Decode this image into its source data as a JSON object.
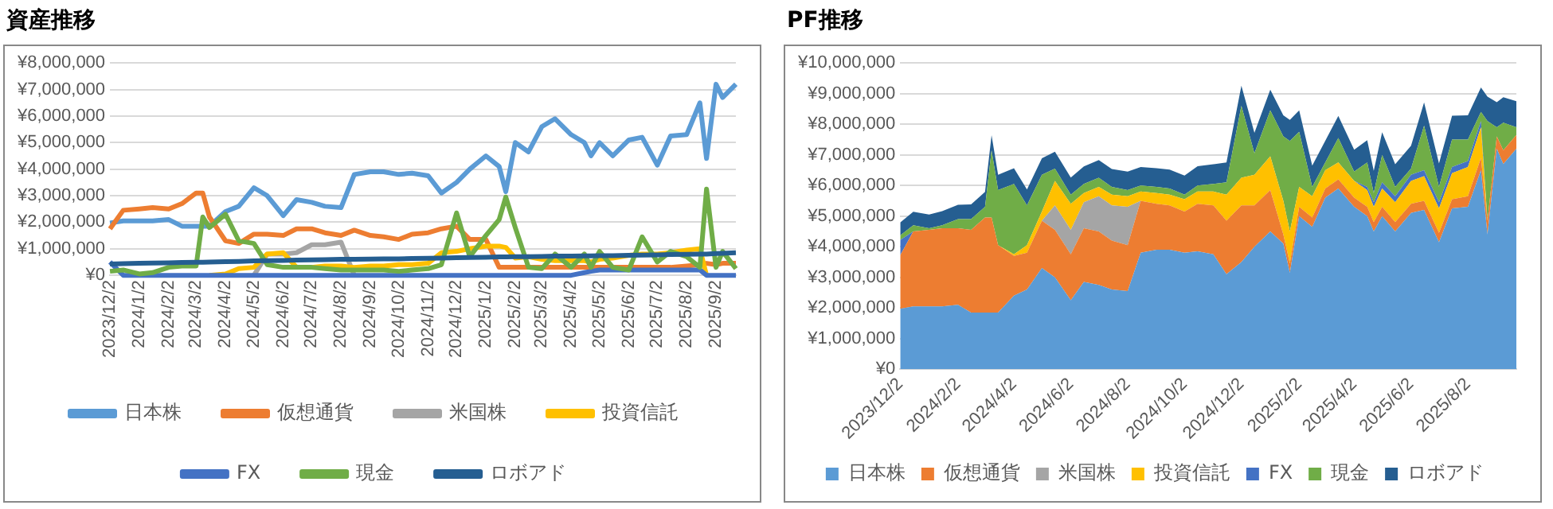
{
  "chart_data": [
    {
      "type": "line",
      "title": "資産推移",
      "grid": "y",
      "legend": "bottom",
      "marker": "none",
      "line_style": "solid",
      "x": [
        "2023-12-02",
        "2023-12-16",
        "2024-01-02",
        "2024-01-16",
        "2024-02-02",
        "2024-02-16",
        "2024-03-02",
        "2024-03-09",
        "2024-03-16",
        "2024-04-02",
        "2024-04-16",
        "2024-05-02",
        "2024-05-16",
        "2024-06-02",
        "2024-06-16",
        "2024-07-02",
        "2024-07-16",
        "2024-08-02",
        "2024-08-16",
        "2024-09-02",
        "2024-09-16",
        "2024-10-02",
        "2024-10-16",
        "2024-11-02",
        "2024-11-16",
        "2024-12-02",
        "2024-12-16",
        "2025-01-02",
        "2025-01-16",
        "2025-01-23",
        "2025-02-02",
        "2025-02-16",
        "2025-03-02",
        "2025-03-16",
        "2025-04-02",
        "2025-04-16",
        "2025-04-23",
        "2025-05-02",
        "2025-05-16",
        "2025-06-02",
        "2025-06-16",
        "2025-07-02",
        "2025-07-16",
        "2025-08-02",
        "2025-08-16",
        "2025-08-23",
        "2025-09-02",
        "2025-09-09",
        "2025-09-23"
      ],
      "xlim": [
        "2023-12-02",
        "2025-09-23"
      ],
      "xticks": [
        {
          "value": "2023-12-02",
          "label": "2023/12/2"
        },
        {
          "value": "2024-01-02",
          "label": "2024/1/2"
        },
        {
          "value": "2024-02-02",
          "label": "2024/2/2"
        },
        {
          "value": "2024-03-02",
          "label": "2024/3/2"
        },
        {
          "value": "2024-04-02",
          "label": "2024/4/2"
        },
        {
          "value": "2024-05-02",
          "label": "2024/5/2"
        },
        {
          "value": "2024-06-02",
          "label": "2024/6/2"
        },
        {
          "value": "2024-07-02",
          "label": "2024/7/2"
        },
        {
          "value": "2024-08-02",
          "label": "2024/8/2"
        },
        {
          "value": "2024-09-02",
          "label": "2024/9/2"
        },
        {
          "value": "2024-10-02",
          "label": "2024/10/2"
        },
        {
          "value": "2024-11-02",
          "label": "2024/11/2"
        },
        {
          "value": "2024-12-02",
          "label": "2024/12/2"
        },
        {
          "value": "2025-01-02",
          "label": "2025/1/2"
        },
        {
          "value": "2025-02-02",
          "label": "2025/2/2"
        },
        {
          "value": "2025-03-02",
          "label": "2025/3/2"
        },
        {
          "value": "2025-04-02",
          "label": "2025/4/2"
        },
        {
          "value": "2025-05-02",
          "label": "2025/5/2"
        },
        {
          "value": "2025-06-02",
          "label": "2025/6/2"
        },
        {
          "value": "2025-07-02",
          "label": "2025/7/2"
        },
        {
          "value": "2025-08-02",
          "label": "2025/8/2"
        },
        {
          "value": "2025-09-02",
          "label": "2025/9/2"
        }
      ],
      "ylim": [
        0,
        8000000
      ],
      "yticks": [
        {
          "value": 0,
          "label": "¥0"
        },
        {
          "value": 1000000,
          "label": "¥1,000,000"
        },
        {
          "value": 2000000,
          "label": "¥2,000,000"
        },
        {
          "value": 3000000,
          "label": "¥3,000,000"
        },
        {
          "value": 4000000,
          "label": "¥4,000,000"
        },
        {
          "value": 5000000,
          "label": "¥5,000,000"
        },
        {
          "value": 6000000,
          "label": "¥6,000,000"
        },
        {
          "value": 7000000,
          "label": "¥7,000,000"
        },
        {
          "value": 8000000,
          "label": "¥8,000,000"
        }
      ],
      "series": [
        {
          "name": "日本株",
          "color": "#5b9bd5",
          "values": [
            1970000,
            2050000,
            2050000,
            2050000,
            2100000,
            1850000,
            1850000,
            1850000,
            1850000,
            2400000,
            2600000,
            3300000,
            3000000,
            2250000,
            2850000,
            2750000,
            2600000,
            2550000,
            3800000,
            3900000,
            3900000,
            3800000,
            3850000,
            3750000,
            3100000,
            3500000,
            4000000,
            4500000,
            4100000,
            3150000,
            5000000,
            4650000,
            5600000,
            5900000,
            5300000,
            5000000,
            4500000,
            5000000,
            4500000,
            5100000,
            5200000,
            4150000,
            5250000,
            5300000,
            6500000,
            4400000,
            7200000,
            6700000,
            7200000
          ]
        },
        {
          "name": "仮想通貨",
          "color": "#ed7d31",
          "values": [
            1750000,
            2450000,
            2500000,
            2550000,
            2500000,
            2700000,
            3100000,
            3100000,
            2200000,
            1300000,
            1200000,
            1550000,
            1550000,
            1500000,
            1750000,
            1750000,
            1600000,
            1500000,
            1700000,
            1500000,
            1450000,
            1350000,
            1550000,
            1600000,
            1750000,
            1850000,
            1350000,
            1350000,
            300000,
            300000,
            300000,
            300000,
            300000,
            300000,
            300000,
            300000,
            300000,
            300000,
            300000,
            300000,
            300000,
            300000,
            300000,
            350000,
            400000,
            450000,
            400000,
            450000,
            450000
          ]
        },
        {
          "name": "米国株",
          "color": "#a5a5a5",
          "values": [
            null,
            null,
            null,
            null,
            null,
            null,
            null,
            null,
            null,
            null,
            null,
            0,
            800000,
            800000,
            850000,
            1150000,
            1150000,
            1250000,
            0,
            null,
            null,
            null,
            null,
            null,
            null,
            null,
            null,
            null,
            null,
            null,
            null,
            null,
            null,
            null,
            null,
            null,
            null,
            null,
            null,
            null,
            null,
            null,
            null,
            null,
            null,
            null,
            null,
            null,
            null
          ]
        },
        {
          "name": "投資信託",
          "color": "#ffc000",
          "values": [
            null,
            null,
            null,
            null,
            null,
            null,
            null,
            null,
            0,
            50000,
            250000,
            300000,
            800000,
            850000,
            300000,
            300000,
            350000,
            350000,
            300000,
            350000,
            350000,
            400000,
            400000,
            450000,
            850000,
            900000,
            1000000,
            1100000,
            1100000,
            1050000,
            650000,
            700000,
            600000,
            550000,
            550000,
            550000,
            500000,
            600000,
            650000,
            750000,
            800000,
            800000,
            850000,
            950000,
            1000000,
            0,
            null,
            null,
            null
          ]
        },
        {
          "name": "FX",
          "color": "#4472c4",
          "values": [
            500000,
            0,
            0,
            0,
            0,
            0,
            0,
            0,
            0,
            0,
            0,
            0,
            0,
            0,
            0,
            0,
            0,
            0,
            0,
            0,
            0,
            0,
            0,
            0,
            0,
            0,
            0,
            0,
            0,
            0,
            0,
            0,
            0,
            0,
            0,
            100000,
            150000,
            200000,
            200000,
            200000,
            200000,
            200000,
            200000,
            200000,
            200000,
            0,
            0,
            0,
            0
          ]
        },
        {
          "name": "現金",
          "color": "#70ad47",
          "values": [
            150000,
            200000,
            50000,
            100000,
            300000,
            350000,
            350000,
            2200000,
            1800000,
            2300000,
            1300000,
            1200000,
            400000,
            300000,
            300000,
            300000,
            250000,
            200000,
            200000,
            200000,
            200000,
            150000,
            200000,
            250000,
            400000,
            2350000,
            700000,
            1500000,
            2100000,
            2950000,
            1800000,
            300000,
            250000,
            800000,
            300000,
            800000,
            300000,
            900000,
            300000,
            200000,
            1450000,
            500000,
            900000,
            700000,
            300000,
            3250000,
            300000,
            900000,
            250000
          ]
        },
        {
          "name": "ロボアド",
          "color": "#255e91",
          "values": [
            420000,
            440000,
            450000,
            460000,
            470000,
            480000,
            490000,
            490000,
            500000,
            510000,
            520000,
            540000,
            550000,
            560000,
            570000,
            580000,
            590000,
            600000,
            600000,
            610000,
            620000,
            620000,
            630000,
            640000,
            650000,
            660000,
            670000,
            680000,
            690000,
            690000,
            700000,
            700000,
            710000,
            720000,
            720000,
            730000,
            730000,
            740000,
            740000,
            750000,
            760000,
            770000,
            780000,
            790000,
            800000,
            800000,
            820000,
            830000,
            850000
          ]
        }
      ]
    },
    {
      "type": "area",
      "stacked": true,
      "title": "PF推移",
      "grid": "y",
      "legend": "bottom",
      "x": [
        "2023-12-02",
        "2023-12-16",
        "2024-01-02",
        "2024-01-16",
        "2024-02-02",
        "2024-02-16",
        "2024-03-02",
        "2024-03-09",
        "2024-03-16",
        "2024-04-02",
        "2024-04-16",
        "2024-05-02",
        "2024-05-16",
        "2024-06-02",
        "2024-06-16",
        "2024-07-02",
        "2024-07-16",
        "2024-08-02",
        "2024-08-16",
        "2024-09-02",
        "2024-09-16",
        "2024-10-02",
        "2024-10-16",
        "2024-11-02",
        "2024-11-16",
        "2024-12-02",
        "2024-12-16",
        "2025-01-02",
        "2025-01-16",
        "2025-01-23",
        "2025-02-02",
        "2025-02-16",
        "2025-03-02",
        "2025-03-16",
        "2025-04-02",
        "2025-04-16",
        "2025-04-23",
        "2025-05-02",
        "2025-05-16",
        "2025-06-02",
        "2025-06-16",
        "2025-07-02",
        "2025-07-16",
        "2025-08-02",
        "2025-08-16",
        "2025-08-23",
        "2025-09-02",
        "2025-09-09",
        "2025-09-23"
      ],
      "xlim": [
        "2023-12-02",
        "2025-09-23"
      ],
      "xticks": [
        {
          "value": "2023-12-02",
          "label": "2023/12/2"
        },
        {
          "value": "2024-02-02",
          "label": "2024/2/2"
        },
        {
          "value": "2024-04-02",
          "label": "2024/4/2"
        },
        {
          "value": "2024-06-02",
          "label": "2024/6/2"
        },
        {
          "value": "2024-08-02",
          "label": "2024/8/2"
        },
        {
          "value": "2024-10-02",
          "label": "2024/10/2"
        },
        {
          "value": "2024-12-02",
          "label": "2024/12/2"
        },
        {
          "value": "2025-02-02",
          "label": "2025/2/2"
        },
        {
          "value": "2025-04-02",
          "label": "2025/4/2"
        },
        {
          "value": "2025-06-02",
          "label": "2025/6/2"
        },
        {
          "value": "2025-08-02",
          "label": "2025/8/2"
        }
      ],
      "ylim": [
        0,
        10000000
      ],
      "yticks": [
        {
          "value": 0,
          "label": "¥0"
        },
        {
          "value": 1000000,
          "label": "¥1,000,000"
        },
        {
          "value": 2000000,
          "label": "¥2,000,000"
        },
        {
          "value": 3000000,
          "label": "¥3,000,000"
        },
        {
          "value": 4000000,
          "label": "¥4,000,000"
        },
        {
          "value": 5000000,
          "label": "¥5,000,000"
        },
        {
          "value": 6000000,
          "label": "¥6,000,000"
        },
        {
          "value": 7000000,
          "label": "¥7,000,000"
        },
        {
          "value": 8000000,
          "label": "¥8,000,000"
        },
        {
          "value": 9000000,
          "label": "¥9,000,000"
        },
        {
          "value": 10000000,
          "label": "¥10,000,000"
        }
      ],
      "series": [
        {
          "name": "日本株",
          "color": "#5b9bd5",
          "values": [
            1970000,
            2050000,
            2050000,
            2050000,
            2100000,
            1850000,
            1850000,
            1850000,
            1850000,
            2400000,
            2600000,
            3300000,
            3000000,
            2250000,
            2850000,
            2750000,
            2600000,
            2550000,
            3800000,
            3900000,
            3900000,
            3800000,
            3850000,
            3750000,
            3100000,
            3500000,
            4000000,
            4500000,
            4100000,
            3150000,
            5000000,
            4650000,
            5600000,
            5900000,
            5300000,
            5000000,
            4500000,
            5000000,
            4500000,
            5100000,
            5200000,
            4150000,
            5250000,
            5300000,
            6500000,
            4400000,
            7200000,
            6700000,
            7200000
          ]
        },
        {
          "name": "仮想通貨",
          "color": "#ed7d31",
          "values": [
            1750000,
            2450000,
            2500000,
            2550000,
            2500000,
            2700000,
            3100000,
            3100000,
            2200000,
            1300000,
            1200000,
            1550000,
            1550000,
            1500000,
            1750000,
            1750000,
            1600000,
            1500000,
            1700000,
            1500000,
            1450000,
            1350000,
            1550000,
            1600000,
            1750000,
            1850000,
            1350000,
            1350000,
            300000,
            300000,
            300000,
            300000,
            300000,
            300000,
            300000,
            300000,
            300000,
            300000,
            300000,
            300000,
            300000,
            300000,
            300000,
            350000,
            400000,
            450000,
            400000,
            450000,
            450000
          ]
        },
        {
          "name": "米国株",
          "color": "#a5a5a5",
          "values": [
            0,
            0,
            0,
            0,
            0,
            0,
            0,
            0,
            0,
            0,
            0,
            0,
            800000,
            800000,
            850000,
            1150000,
            1150000,
            1250000,
            0,
            0,
            0,
            0,
            0,
            0,
            0,
            0,
            0,
            0,
            0,
            0,
            0,
            0,
            0,
            0,
            0,
            0,
            0,
            0,
            0,
            0,
            0,
            0,
            0,
            0,
            0,
            0,
            0,
            0,
            0
          ]
        },
        {
          "name": "投資信託",
          "color": "#ffc000",
          "values": [
            0,
            0,
            0,
            0,
            0,
            0,
            0,
            0,
            0,
            50000,
            250000,
            300000,
            800000,
            850000,
            300000,
            300000,
            350000,
            350000,
            300000,
            350000,
            350000,
            400000,
            400000,
            450000,
            850000,
            900000,
            1000000,
            1100000,
            1100000,
            1050000,
            650000,
            700000,
            600000,
            550000,
            550000,
            550000,
            500000,
            600000,
            650000,
            750000,
            800000,
            800000,
            850000,
            950000,
            1000000,
            0,
            0,
            0,
            0
          ]
        },
        {
          "name": "FX",
          "color": "#4472c4",
          "values": [
            500000,
            0,
            0,
            0,
            0,
            0,
            0,
            0,
            0,
            0,
            0,
            0,
            0,
            0,
            0,
            0,
            0,
            0,
            0,
            0,
            0,
            0,
            0,
            0,
            0,
            0,
            0,
            0,
            0,
            0,
            0,
            0,
            0,
            0,
            0,
            100000,
            150000,
            200000,
            200000,
            200000,
            200000,
            200000,
            200000,
            200000,
            200000,
            0,
            0,
            0,
            0
          ]
        },
        {
          "name": "現金",
          "color": "#70ad47",
          "values": [
            150000,
            200000,
            50000,
            100000,
            300000,
            350000,
            350000,
            2200000,
            1800000,
            2300000,
            1300000,
            1200000,
            400000,
            300000,
            300000,
            300000,
            250000,
            200000,
            200000,
            200000,
            200000,
            150000,
            200000,
            250000,
            400000,
            2350000,
            700000,
            1500000,
            2100000,
            2950000,
            1800000,
            300000,
            250000,
            800000,
            300000,
            800000,
            300000,
            900000,
            300000,
            200000,
            1450000,
            500000,
            900000,
            700000,
            300000,
            3250000,
            300000,
            900000,
            250000
          ]
        },
        {
          "name": "ロボアド",
          "color": "#255e91",
          "values": [
            420000,
            440000,
            450000,
            460000,
            470000,
            480000,
            490000,
            490000,
            500000,
            510000,
            520000,
            540000,
            550000,
            560000,
            570000,
            580000,
            590000,
            600000,
            600000,
            610000,
            620000,
            620000,
            630000,
            640000,
            650000,
            660000,
            670000,
            680000,
            690000,
            690000,
            700000,
            700000,
            710000,
            720000,
            720000,
            730000,
            730000,
            740000,
            740000,
            750000,
            760000,
            770000,
            780000,
            790000,
            800000,
            800000,
            820000,
            830000,
            850000
          ]
        }
      ]
    }
  ]
}
